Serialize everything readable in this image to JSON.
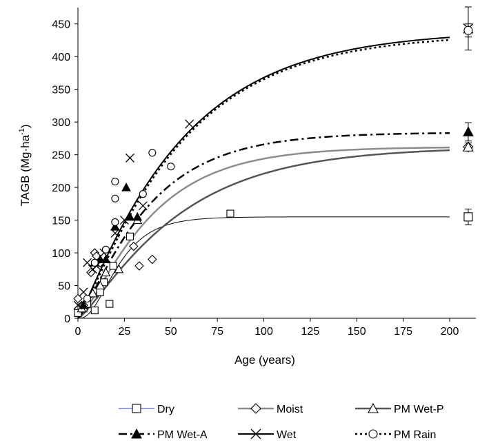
{
  "chart_data": {
    "type": "scatter",
    "title": "",
    "xlabel": "Age (years)",
    "ylabel_main": "TAGB (Mg·ha",
    "ylabel_sup": "-1",
    "ylabel_close": ")",
    "xlim": [
      0,
      200
    ],
    "ylim": [
      0,
      475
    ],
    "xticks": [
      0,
      25,
      50,
      75,
      100,
      125,
      150,
      175,
      200
    ],
    "yticks": [
      0,
      50,
      100,
      150,
      200,
      250,
      300,
      350,
      400,
      450
    ],
    "grid": false,
    "legend_position": "bottom",
    "asymptote_x": 210,
    "series": [
      {
        "name": "Dry",
        "marker": "square",
        "line_color": "#000000",
        "legend_line_color": "#2f3fc4",
        "line_width": 1,
        "dash": "",
        "curve": {
          "A": 155,
          "k": 0.075,
          "p": 3.0,
          "x_end": 200
        },
        "points": [
          [
            0,
            8
          ],
          [
            3,
            15
          ],
          [
            5,
            22
          ],
          [
            9,
            12
          ],
          [
            12,
            40
          ],
          [
            14,
            55
          ],
          [
            17,
            22
          ],
          [
            19,
            80
          ],
          [
            28,
            125
          ],
          [
            82,
            160
          ]
        ],
        "asymptote": {
          "y": 155,
          "err": 12
        }
      },
      {
        "name": "Moist",
        "marker": "diamond",
        "line_color": "#8c8c8c",
        "legend_line_color": "#8c8c8c",
        "line_width": 2.5,
        "dash": "",
        "curve": {
          "A": 262,
          "k": 0.03,
          "p": 1.4,
          "x_end": 200
        },
        "points": [
          [
            0,
            30
          ],
          [
            3,
            20
          ],
          [
            7,
            70
          ],
          [
            9,
            100
          ],
          [
            10,
            95
          ],
          [
            12,
            85
          ],
          [
            30,
            110
          ],
          [
            33,
            80
          ],
          [
            40,
            90
          ]
        ],
        "asymptote": {
          "y": 262,
          "err": 6
        }
      },
      {
        "name": "PM Wet-P",
        "marker": "triangle-open",
        "line_color": "#555555",
        "legend_line_color": "#555555",
        "line_width": 2.5,
        "dash": "",
        "curve": {
          "A": 262,
          "k": 0.021,
          "p": 1.3,
          "x_end": 200
        },
        "points": [
          [
            2,
            15
          ],
          [
            8,
            38
          ],
          [
            12,
            50
          ],
          [
            15,
            70
          ],
          [
            22,
            75
          ],
          [
            32,
            150
          ]
        ],
        "asymptote": {
          "y": 262,
          "err": 6
        }
      },
      {
        "name": "PM Wet-A",
        "marker": "triangle-filled",
        "line_color": "#000000",
        "legend_line_color": "#000000",
        "line_width": 2.5,
        "dash": "12,5,3,5",
        "curve": {
          "A": 284,
          "k": 0.03,
          "p": 1.3,
          "x_end": 200
        },
        "points": [
          [
            3,
            20
          ],
          [
            9,
            85
          ],
          [
            12,
            90
          ],
          [
            15,
            90
          ],
          [
            20,
            140
          ],
          [
            26,
            200
          ],
          [
            28,
            155
          ],
          [
            32,
            155
          ]
        ],
        "asymptote": {
          "y": 285,
          "err": 14
        }
      },
      {
        "name": "Wet",
        "marker": "x",
        "line_color": "#000000",
        "legend_line_color": "#000000",
        "line_width": 2,
        "dash": "",
        "curve": {
          "A": 440,
          "k": 0.0193,
          "p": 1.14,
          "x_end": 200
        },
        "points": [
          [
            0,
            20
          ],
          [
            3,
            40
          ],
          [
            5,
            85
          ],
          [
            8,
            75
          ],
          [
            10,
            80
          ],
          [
            14,
            100
          ],
          [
            20,
            130
          ],
          [
            25,
            150
          ],
          [
            28,
            245
          ],
          [
            35,
            172
          ],
          [
            60,
            297
          ]
        ],
        "asymptote": {
          "y": 443,
          "err": 33
        }
      },
      {
        "name": "PM Rain",
        "marker": "circle",
        "line_color": "#000000",
        "legend_line_color": "#000000",
        "line_width": 2.5,
        "dash": "3,4",
        "curve": {
          "A": 435,
          "k": 0.02,
          "p": 1.2,
          "x_end": 200
        },
        "points": [
          [
            5,
            30
          ],
          [
            9,
            85
          ],
          [
            15,
            105
          ],
          [
            20,
            183
          ],
          [
            20,
            147
          ],
          [
            20,
            209
          ],
          [
            35,
            190
          ],
          [
            40,
            253
          ],
          [
            50,
            232
          ]
        ],
        "asymptote": {
          "y": 440,
          "err": 10
        }
      }
    ]
  }
}
